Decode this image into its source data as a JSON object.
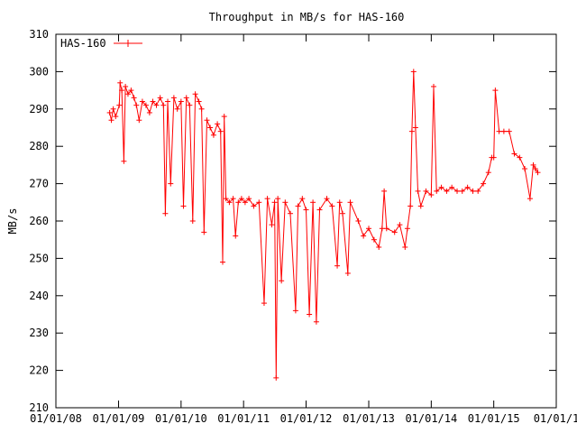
{
  "chart_data": {
    "type": "line",
    "title": "Throughput in MB/s for HAS-160",
    "xlabel": "",
    "ylabel": "MB/s",
    "ylim": [
      210,
      310
    ],
    "xlim": [
      "2008-01-01",
      "2016-01-01"
    ],
    "y_ticks": [
      210,
      220,
      230,
      240,
      250,
      260,
      270,
      280,
      290,
      300,
      310
    ],
    "x_ticks": [
      {
        "date": "2008-01-01",
        "label": "01/01/08"
      },
      {
        "date": "2009-01-01",
        "label": "01/01/09"
      },
      {
        "date": "2010-01-01",
        "label": "01/01/10"
      },
      {
        "date": "2011-01-01",
        "label": "01/01/11"
      },
      {
        "date": "2012-01-01",
        "label": "01/01/12"
      },
      {
        "date": "2013-01-01",
        "label": "01/01/13"
      },
      {
        "date": "2014-01-01",
        "label": "01/01/14"
      },
      {
        "date": "2015-01-01",
        "label": "01/01/15"
      },
      {
        "date": "2016-01-01",
        "label": "01/01/1"
      }
    ],
    "grid": false,
    "legend_position": "top-left",
    "series": [
      {
        "name": "HAS-160",
        "color": "#ff0000",
        "marker": "plus",
        "points": [
          [
            "2008-11-10",
            289
          ],
          [
            "2008-11-20",
            287
          ],
          [
            "2008-12-01",
            290
          ],
          [
            "2008-12-15",
            288
          ],
          [
            "2009-01-05",
            291
          ],
          [
            "2009-01-10",
            297
          ],
          [
            "2009-01-20",
            295
          ],
          [
            "2009-02-01",
            276
          ],
          [
            "2009-02-10",
            296
          ],
          [
            "2009-02-25",
            294
          ],
          [
            "2009-03-15",
            295
          ],
          [
            "2009-04-01",
            293
          ],
          [
            "2009-04-15",
            291
          ],
          [
            "2009-05-01",
            287
          ],
          [
            "2009-05-20",
            292
          ],
          [
            "2009-06-10",
            291
          ],
          [
            "2009-07-01",
            289
          ],
          [
            "2009-07-20",
            292
          ],
          [
            "2009-08-10",
            291
          ],
          [
            "2009-09-01",
            293
          ],
          [
            "2009-09-20",
            291
          ],
          [
            "2009-10-01",
            262
          ],
          [
            "2009-10-15",
            292
          ],
          [
            "2009-11-01",
            270
          ],
          [
            "2009-11-20",
            293
          ],
          [
            "2009-12-10",
            290
          ],
          [
            "2010-01-01",
            292
          ],
          [
            "2010-01-15",
            264
          ],
          [
            "2010-02-01",
            293
          ],
          [
            "2010-02-20",
            291
          ],
          [
            "2010-03-10",
            260
          ],
          [
            "2010-03-25",
            294
          ],
          [
            "2010-04-15",
            292
          ],
          [
            "2010-05-01",
            290
          ],
          [
            "2010-05-15",
            257
          ],
          [
            "2010-06-01",
            287
          ],
          [
            "2010-06-20",
            285
          ],
          [
            "2010-07-10",
            283
          ],
          [
            "2010-08-01",
            286
          ],
          [
            "2010-08-20",
            284
          ],
          [
            "2010-09-01",
            249
          ],
          [
            "2010-09-10",
            288
          ],
          [
            "2010-09-20",
            266
          ],
          [
            "2010-10-10",
            265
          ],
          [
            "2010-11-01",
            266
          ],
          [
            "2010-11-15",
            256
          ],
          [
            "2010-12-01",
            265
          ],
          [
            "2010-12-20",
            266
          ],
          [
            "2011-01-10",
            265
          ],
          [
            "2011-02-01",
            266
          ],
          [
            "2011-03-01",
            264
          ],
          [
            "2011-04-01",
            265
          ],
          [
            "2011-05-01",
            238
          ],
          [
            "2011-05-20",
            266
          ],
          [
            "2011-06-15",
            259
          ],
          [
            "2011-07-01",
            265
          ],
          [
            "2011-07-10",
            218
          ],
          [
            "2011-07-20",
            266
          ],
          [
            "2011-08-10",
            244
          ],
          [
            "2011-09-01",
            265
          ],
          [
            "2011-10-01",
            262
          ],
          [
            "2011-11-01",
            236
          ],
          [
            "2011-11-15",
            264
          ],
          [
            "2011-12-10",
            266
          ],
          [
            "2012-01-01",
            263
          ],
          [
            "2012-01-20",
            235
          ],
          [
            "2012-02-10",
            265
          ],
          [
            "2012-03-01",
            233
          ],
          [
            "2012-03-20",
            263
          ],
          [
            "2012-05-01",
            266
          ],
          [
            "2012-06-01",
            264
          ],
          [
            "2012-07-01",
            248
          ],
          [
            "2012-07-15",
            265
          ],
          [
            "2012-08-01",
            262
          ],
          [
            "2012-09-01",
            246
          ],
          [
            "2012-09-15",
            265
          ],
          [
            "2012-11-01",
            260
          ],
          [
            "2012-12-01",
            256
          ],
          [
            "2013-01-01",
            258
          ],
          [
            "2013-02-01",
            255
          ],
          [
            "2013-03-01",
            253
          ],
          [
            "2013-03-20",
            258
          ],
          [
            "2013-04-01",
            268
          ],
          [
            "2013-04-15",
            258
          ],
          [
            "2013-06-01",
            257
          ],
          [
            "2013-07-01",
            259
          ],
          [
            "2013-08-01",
            253
          ],
          [
            "2013-08-15",
            258
          ],
          [
            "2013-09-01",
            264
          ],
          [
            "2013-09-10",
            284
          ],
          [
            "2013-09-20",
            300
          ],
          [
            "2013-10-01",
            285
          ],
          [
            "2013-10-15",
            268
          ],
          [
            "2013-11-01",
            264
          ],
          [
            "2013-12-01",
            268
          ],
          [
            "2014-01-01",
            267
          ],
          [
            "2014-01-15",
            296
          ],
          [
            "2014-02-01",
            268
          ],
          [
            "2014-03-01",
            269
          ],
          [
            "2014-04-01",
            268
          ],
          [
            "2014-05-01",
            269
          ],
          [
            "2014-06-01",
            268
          ],
          [
            "2014-07-01",
            268
          ],
          [
            "2014-08-01",
            269
          ],
          [
            "2014-09-01",
            268
          ],
          [
            "2014-10-01",
            268
          ],
          [
            "2014-11-01",
            270
          ],
          [
            "2014-12-01",
            273
          ],
          [
            "2014-12-20",
            277
          ],
          [
            "2015-01-01",
            277
          ],
          [
            "2015-01-10",
            295
          ],
          [
            "2015-02-01",
            284
          ],
          [
            "2015-03-01",
            284
          ],
          [
            "2015-04-01",
            284
          ],
          [
            "2015-05-01",
            278
          ],
          [
            "2015-06-01",
            277
          ],
          [
            "2015-07-01",
            274
          ],
          [
            "2015-08-01",
            266
          ],
          [
            "2015-08-20",
            275
          ],
          [
            "2015-09-01",
            274
          ],
          [
            "2015-09-15",
            273
          ]
        ]
      }
    ]
  }
}
